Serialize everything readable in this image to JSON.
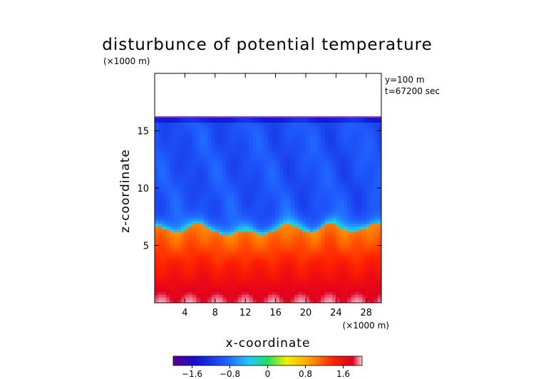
{
  "chart_data": {
    "type": "heatmap",
    "title": "disturbunce of potential temperature",
    "xlabel": "x-coordinate",
    "ylabel": "z-coordinate",
    "x_unit": "(×1000 m)",
    "y_unit": "(×1000 m)",
    "annotations": [
      "y=100 m",
      "t=67200 sec"
    ],
    "xlim": [
      0,
      30
    ],
    "ylim": [
      0,
      20
    ],
    "x_ticks": [
      4,
      8,
      12,
      16,
      20,
      24,
      28
    ],
    "y_ticks": [
      5,
      10,
      15
    ],
    "colorbar": {
      "range": [
        -2.0,
        2.0
      ],
      "tick_values": [
        -1.6,
        -0.8,
        0,
        0.8,
        1.6
      ],
      "tick_labels": [
        "−1.6",
        "−0.8",
        "0",
        "0.8",
        "1.6"
      ]
    },
    "field": {
      "top_of_data_km": 16.2,
      "interface_height_km": [
        6.8,
        6.6,
        6.3,
        6.1,
        6.4,
        6.8,
        6.9,
        6.5,
        6.1,
        5.9,
        6.0,
        6.2,
        6.3,
        6.1,
        6.0,
        6.2,
        6.6,
        6.9,
        6.7,
        6.3,
        6.1,
        6.4,
        6.9,
        7.0,
        6.5,
        6.2,
        6.3,
        6.6,
        6.9,
        6.9
      ],
      "cold_region_value": -1.0,
      "warm_region_value_near_interface": 1.0,
      "warm_region_value_at_ground": 1.9
    }
  }
}
